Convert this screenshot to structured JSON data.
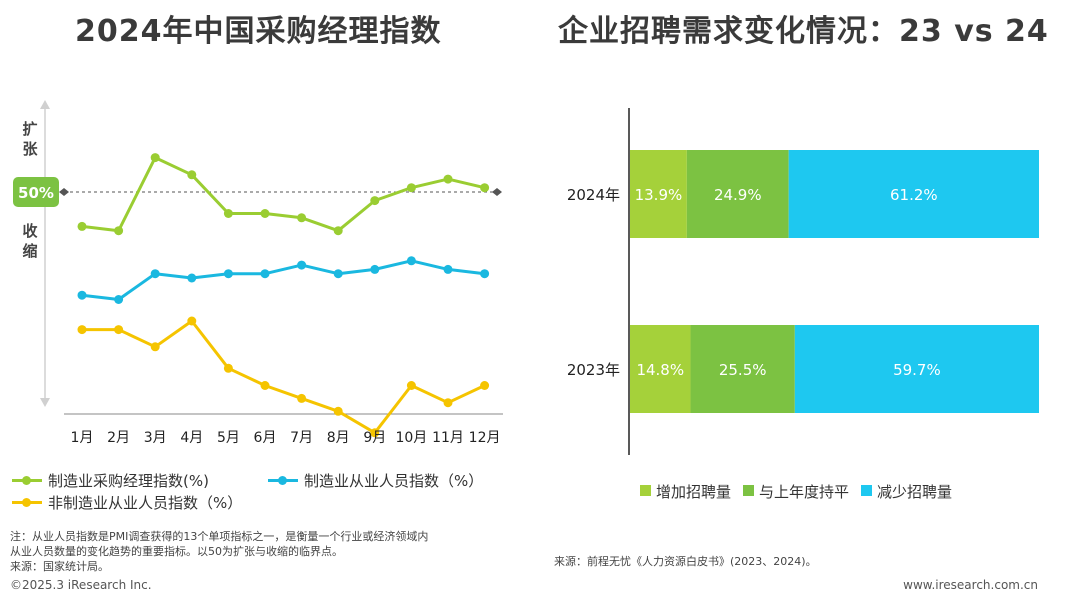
{
  "titles": {
    "left": "2024年中国采购经理指数",
    "right": "企业招聘需求变化情况：23 vs 24"
  },
  "axis_annotations": {
    "expand": [
      "扩",
      "张"
    ],
    "contract": [
      "收",
      "缩"
    ],
    "threshold_label": "50%"
  },
  "notes": {
    "line1": "注：从业人员指数是PMI调查获得的13个单项指标之一，是衡量一个行业或经济领域内",
    "line2": "从业人员数量的变化趋势的重要指标。以50为扩张与收缩的临界点。",
    "line3": "来源：国家统计局。"
  },
  "source_right": "来源：前程无忧《人力资源白皮书》(2023、2024)。",
  "footer": {
    "left": "©2025.3 iResearch Inc.",
    "right": "www.iresearch.com.cn"
  },
  "colors": {
    "green_line": "#9acd32",
    "blue_line": "#1ab8e0",
    "yellow_line": "#f5c400",
    "bar_increase": "#a5d13a",
    "bar_flat": "#7cc242",
    "bar_decrease": "#1ec8f0",
    "threshold_badge": "#7cc242"
  },
  "chart_data": [
    {
      "type": "line",
      "title": "2024年中国采购经理指数",
      "categories": [
        "1月",
        "2月",
        "3月",
        "4月",
        "5月",
        "6月",
        "7月",
        "8月",
        "9月",
        "10月",
        "11月",
        "12月"
      ],
      "reference_line": 50,
      "series": [
        {
          "name": "制造业采购经理指数(%)",
          "values": [
            49.2,
            49.1,
            50.8,
            50.4,
            49.5,
            49.5,
            49.4,
            49.1,
            49.8,
            50.1,
            50.3,
            50.1
          ]
        },
        {
          "name": "制造业从业人员指数（%）",
          "values": [
            47.6,
            47.5,
            48.1,
            48.0,
            48.1,
            48.1,
            48.3,
            48.1,
            48.2,
            48.4,
            48.2,
            48.1
          ]
        },
        {
          "name": "非制造业从业人员指数（%）",
          "values": [
            46.8,
            46.8,
            46.4,
            47.0,
            45.9,
            45.5,
            45.2,
            44.9,
            44.4,
            45.5,
            45.1,
            45.5
          ]
        }
      ]
    },
    {
      "type": "bar",
      "title": "企业招聘需求变化情况：23 vs 24",
      "stacked": true,
      "orientation": "horizontal",
      "categories": [
        "2024年",
        "2023年"
      ],
      "series": [
        {
          "name": "增加招聘量",
          "values": [
            13.9,
            14.8
          ],
          "labels": [
            "13.9%",
            "14.8%"
          ]
        },
        {
          "name": "与上年度持平",
          "values": [
            24.9,
            25.5
          ],
          "labels": [
            "24.9%",
            "25.5%"
          ]
        },
        {
          "name": "减少招聘量",
          "values": [
            61.2,
            59.7
          ],
          "labels": [
            "61.2%",
            "59.7%"
          ]
        }
      ]
    }
  ]
}
